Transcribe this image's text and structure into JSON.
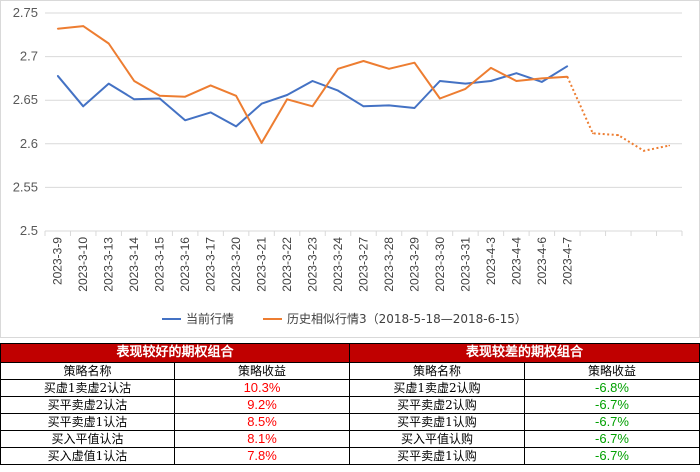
{
  "chart_data": {
    "type": "line",
    "y_ticks": [
      "2.75",
      "2.7",
      "2.65",
      "2.6",
      "2.55",
      "2.5"
    ],
    "ylim": [
      2.5,
      2.75
    ],
    "categories": [
      "2023-3-9",
      "2023-3-10",
      "2023-3-13",
      "2023-3-14",
      "2023-3-15",
      "2023-3-16",
      "2023-3-17",
      "2023-3-20",
      "2023-3-21",
      "2023-3-22",
      "2023-3-23",
      "2023-3-24",
      "2023-3-27",
      "2023-3-28",
      "2023-3-29",
      "2023-3-30",
      "2023-3-31",
      "2023-4-3",
      "2023-4-4",
      "2023-4-6",
      "2023-4-7"
    ],
    "series": [
      {
        "name": "当前行情",
        "color": "#4472c4",
        "values": [
          2.678,
          2.643,
          2.669,
          2.651,
          2.652,
          2.627,
          2.636,
          2.62,
          2.646,
          2.656,
          2.672,
          2.661,
          2.643,
          2.644,
          2.641,
          2.672,
          2.669,
          2.672,
          2.681,
          2.671,
          2.689
        ]
      },
      {
        "name": "历史相似行情3（2018-5-18—2018-6-15）",
        "color": "#ed7d31",
        "values": [
          2.732,
          2.735,
          2.715,
          2.672,
          2.655,
          2.654,
          2.667,
          2.655,
          2.601,
          2.651,
          2.643,
          2.686,
          2.695,
          2.686,
          2.693,
          2.652,
          2.663,
          2.687,
          2.672,
          2.675,
          2.677
        ],
        "projection": [
          2.677,
          2.612,
          2.61,
          2.592,
          2.598
        ]
      }
    ]
  },
  "tables": {
    "left": {
      "title": "表现较好的期权组合",
      "col_name": "策略名称",
      "col_value": "策略收益",
      "value_color": "#ff0000",
      "rows": [
        {
          "name": "买虚1卖虚2认沽",
          "value": "10.3%"
        },
        {
          "name": "买平卖虚2认沽",
          "value": "9.2%"
        },
        {
          "name": "买平卖虚1认沽",
          "value": "8.5%"
        },
        {
          "name": "买入平值认沽",
          "value": "8.1%"
        },
        {
          "name": "买入虚值1认沽",
          "value": "7.8%"
        }
      ]
    },
    "right": {
      "title": "表现较差的期权组合",
      "col_name": "策略名称",
      "col_value": "策略收益",
      "value_color": "#00a000",
      "rows": [
        {
          "name": "买虚1卖虚2认购",
          "value": "-6.8%"
        },
        {
          "name": "买平卖虚2认购",
          "value": "-6.7%"
        },
        {
          "name": "买平卖虚1认购",
          "value": "-6.7%"
        },
        {
          "name": "买入平值认购",
          "value": "-6.7%"
        },
        {
          "name": "买平卖虚1认购",
          "value": "-6.7%"
        }
      ]
    }
  }
}
